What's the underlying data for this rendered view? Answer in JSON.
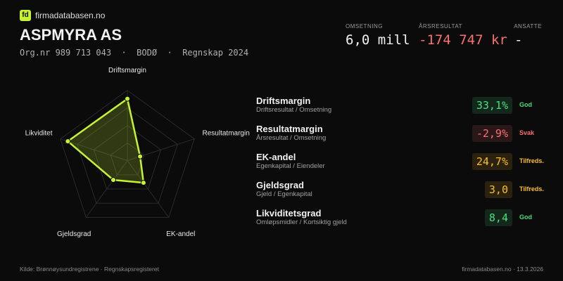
{
  "brand": {
    "logo_mark": "fd",
    "name": "firmadatabasen.no"
  },
  "header": {
    "title": "ASPMYRA AS",
    "subtitle": "Org.nr 989 713 043  ·  BODØ  ·  Regnskap 2024"
  },
  "stats": [
    {
      "label": "OMSETNING",
      "value": "6,0 mill",
      "color": "#f2f2f2"
    },
    {
      "label": "ÅRSRESULTAT",
      "value": "-174 747 kr",
      "color": "#f87171"
    },
    {
      "label": "ANSATTE",
      "value": "-",
      "color": "#f2f2f2"
    }
  ],
  "radar": {
    "axes": [
      "Driftsmargin",
      "Resultatmargin",
      "EK-andel",
      "Gjeldsgrad",
      "Likviditet"
    ],
    "values": [
      88,
      19,
      39,
      34,
      89
    ],
    "rlim": [
      0,
      100
    ],
    "color": "#c6f432"
  },
  "metrics": [
    {
      "name": "Driftsmargin",
      "formula": "Driftsresultat / Omsetning",
      "value": "33,1%",
      "rating": "God",
      "color": "#4ade80"
    },
    {
      "name": "Resultatmargin",
      "formula": "Årsresultat / Omsetning",
      "value": "-2,9%",
      "rating": "Svak",
      "color": "#f87171"
    },
    {
      "name": "EK-andel",
      "formula": "Egenkapital / Eiendeler",
      "value": "24,7%",
      "rating": "Tilfreds.",
      "color": "#fbbf24"
    },
    {
      "name": "Gjeldsgrad",
      "formula": "Gjeld / Egenkapital",
      "value": "3,0",
      "rating": "Tilfreds.",
      "color": "#fbbf24"
    },
    {
      "name": "Likviditetsgrad",
      "formula": "Omløpsmidler / Kortsiktig gjeld",
      "value": "8,4",
      "rating": "God",
      "color": "#4ade80"
    }
  ],
  "footer": {
    "source": "Kilde: Brønnøysundregistrene · Regnskapsregisteret",
    "site": "firmadatabasen.no · 13.3.2026"
  }
}
